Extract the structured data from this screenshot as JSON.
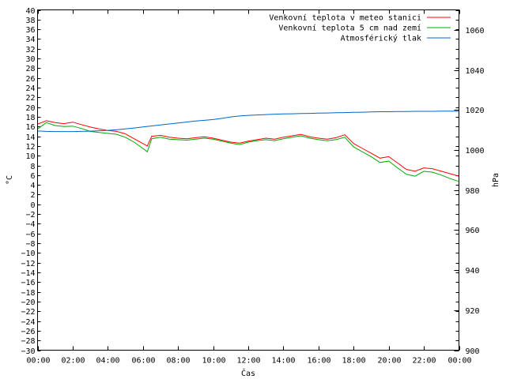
{
  "chart_data": {
    "type": "line",
    "xlabel": "Čas",
    "ylabel": "°C",
    "y2label": "hPa",
    "x_ticks": [
      "00:00",
      "02:00",
      "04:00",
      "06:00",
      "08:00",
      "10:00",
      "12:00",
      "14:00",
      "16:00",
      "18:00",
      "20:00",
      "22:00",
      "00:00"
    ],
    "x_range_hours": [
      0,
      24
    ],
    "ylim": [
      -30,
      40
    ],
    "y_step": 2,
    "y2lim": [
      900,
      1070
    ],
    "y2_step": 20,
    "grid": false,
    "legend_position": "top-right",
    "x_hours": [
      0,
      0.5,
      1,
      1.5,
      2,
      2.5,
      3,
      3.5,
      4,
      4.5,
      5,
      5.5,
      6,
      6.25,
      6.5,
      7,
      7.5,
      8,
      8.5,
      9,
      9.5,
      10,
      10.5,
      11,
      11.5,
      12,
      12.5,
      13,
      13.5,
      14,
      14.5,
      15,
      15.5,
      16,
      16.5,
      17,
      17.5,
      18,
      18.5,
      19,
      19.5,
      20,
      20.5,
      21,
      21.5,
      22,
      22.5,
      23,
      23.5,
      24
    ],
    "series": [
      {
        "name": "Venkovní teplota v meteo stanici",
        "axis": "left",
        "color": "#ff0000",
        "values": [
          16.5,
          17.2,
          16.8,
          16.6,
          16.9,
          16.4,
          15.9,
          15.5,
          15.2,
          15.0,
          14.5,
          13.5,
          12.5,
          12.0,
          14.0,
          14.2,
          13.8,
          13.6,
          13.5,
          13.7,
          13.9,
          13.6,
          13.2,
          12.8,
          12.6,
          13.0,
          13.3,
          13.6,
          13.4,
          13.8,
          14.1,
          14.4,
          13.9,
          13.6,
          13.4,
          13.7,
          14.3,
          12.5,
          11.5,
          10.5,
          9.5,
          9.8,
          8.5,
          7.2,
          6.8,
          7.5,
          7.3,
          6.8,
          6.3,
          5.8
        ]
      },
      {
        "name": "Venkovní teplota 5 cm nad zemí",
        "axis": "left",
        "color": "#00aa00",
        "values": [
          15.5,
          16.8,
          16.2,
          16.0,
          16.1,
          15.6,
          15.0,
          14.8,
          14.6,
          14.4,
          13.8,
          12.8,
          11.5,
          10.8,
          13.5,
          13.8,
          13.4,
          13.3,
          13.2,
          13.4,
          13.6,
          13.4,
          13.0,
          12.6,
          12.3,
          12.8,
          13.1,
          13.3,
          13.1,
          13.5,
          13.8,
          14.1,
          13.6,
          13.3,
          13.1,
          13.3,
          13.8,
          11.8,
          10.8,
          9.8,
          8.6,
          8.9,
          7.5,
          6.2,
          5.8,
          6.8,
          6.6,
          6.0,
          5.3,
          4.7
        ]
      },
      {
        "name": "Atmosférický tlak",
        "axis": "right",
        "color": "#0066cc",
        "values": [
          1009.5,
          1009.3,
          1009.2,
          1009.2,
          1009.2,
          1009.3,
          1009.4,
          1009.6,
          1009.8,
          1010.1,
          1010.5,
          1011.0,
          1011.5,
          1011.8,
          1012.0,
          1012.5,
          1013.0,
          1013.5,
          1014.0,
          1014.5,
          1014.8,
          1015.2,
          1015.8,
          1016.5,
          1017.0,
          1017.3,
          1017.5,
          1017.7,
          1017.9,
          1018.0,
          1018.1,
          1018.2,
          1018.3,
          1018.4,
          1018.5,
          1018.6,
          1018.7,
          1018.8,
          1018.9,
          1019.0,
          1019.1,
          1019.1,
          1019.2,
          1019.2,
          1019.3,
          1019.3,
          1019.3,
          1019.4,
          1019.4,
          1019.3
        ]
      }
    ]
  }
}
